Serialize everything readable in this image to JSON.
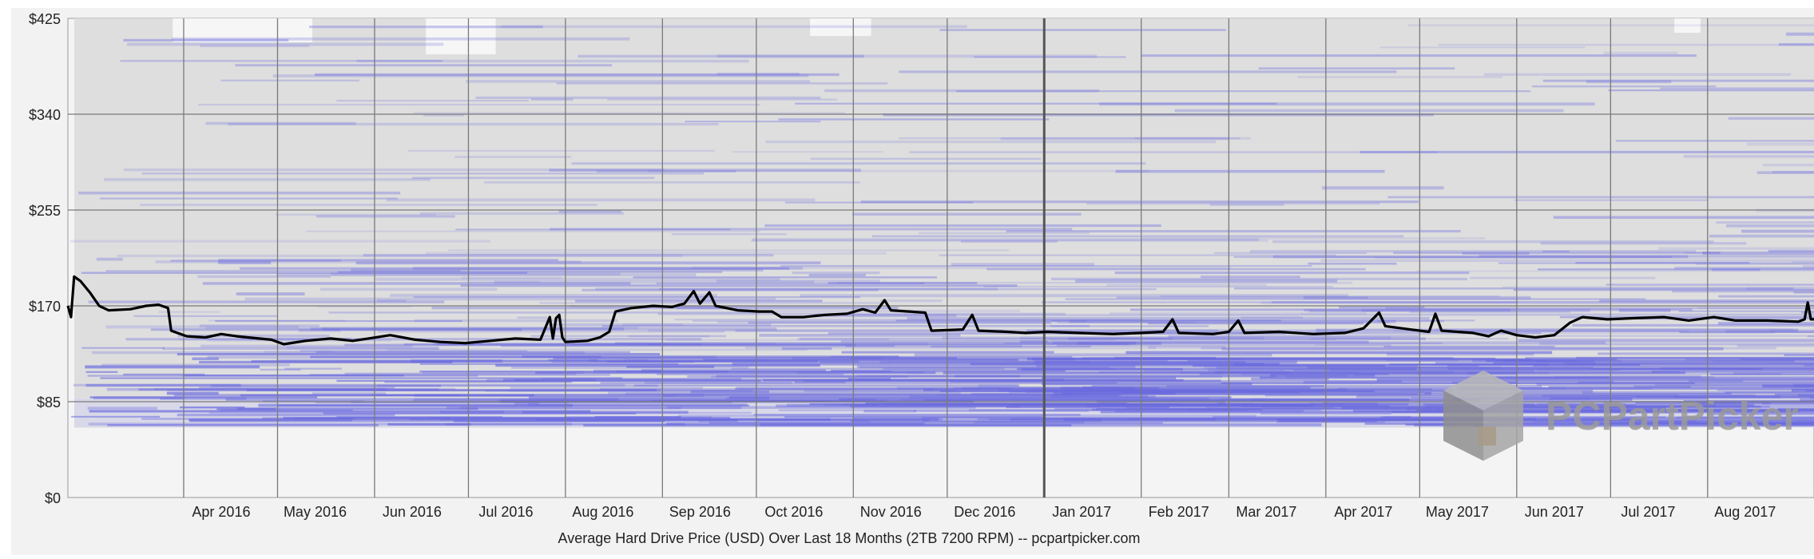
{
  "chart_data": {
    "type": "line",
    "title": "",
    "xlabel": "Average Hard Drive Price (USD) Over Last 18 Months (2TB 7200 RPM) -- pcpartpicker.com",
    "ylabel": "",
    "y_ticks": [
      "$425",
      "$340",
      "$255",
      "$170",
      "$85",
      "$0"
    ],
    "y_tick_values": [
      425,
      340,
      255,
      170,
      85,
      0
    ],
    "ylim": [
      0,
      425
    ],
    "x_labels": [
      "Apr 2016",
      "May 2016",
      "Jun 2016",
      "Jul 2016",
      "Aug 2016",
      "Sep 2016",
      "Oct 2016",
      "Nov 2016",
      "Dec 2016",
      "Jan 2017",
      "Feb 2017",
      "Mar 2017",
      "Apr 2017",
      "May 2017",
      "Jun 2017",
      "Jul 2017",
      "Aug 2017"
    ],
    "xlim": [
      "2016-02-24",
      "2017-09-04"
    ],
    "grid": true,
    "watermark": "PCPartPicker",
    "colors": {
      "average_line": "#000000",
      "price_range_bands": "#6a6adf",
      "background_area": "#dcdcdc",
      "grid": "#7a7a7a"
    },
    "series": [
      {
        "values": [
          [
            "2016-02-24",
            170
          ],
          [
            "2016-02-25",
            160
          ],
          [
            "2016-02-26",
            196
          ],
          [
            "2016-02-28",
            192
          ],
          [
            "2016-03-02",
            182
          ],
          [
            "2016-03-05",
            170
          ],
          [
            "2016-03-08",
            166
          ],
          [
            "2016-03-15",
            167
          ],
          [
            "2016-03-20",
            170
          ],
          [
            "2016-03-24",
            171
          ],
          [
            "2016-03-27",
            168
          ],
          [
            "2016-03-28",
            148
          ],
          [
            "2016-04-02",
            143
          ],
          [
            "2016-04-08",
            142
          ],
          [
            "2016-04-13",
            145
          ],
          [
            "2016-04-18",
            143
          ],
          [
            "2016-04-25",
            141
          ],
          [
            "2016-04-29",
            140
          ],
          [
            "2016-05-03",
            136
          ],
          [
            "2016-05-10",
            139
          ],
          [
            "2016-05-18",
            141
          ],
          [
            "2016-05-25",
            139
          ],
          [
            "2016-05-30",
            141
          ],
          [
            "2016-06-06",
            144
          ],
          [
            "2016-06-14",
            140
          ],
          [
            "2016-06-22",
            138
          ],
          [
            "2016-06-30",
            137
          ],
          [
            "2016-07-08",
            139
          ],
          [
            "2016-07-16",
            141
          ],
          [
            "2016-07-24",
            140
          ],
          [
            "2016-07-27",
            160
          ],
          [
            "2016-07-28",
            141
          ],
          [
            "2016-07-29",
            159
          ],
          [
            "2016-07-30",
            162
          ],
          [
            "2016-07-31",
            142
          ],
          [
            "2016-08-01",
            138
          ],
          [
            "2016-08-08",
            139
          ],
          [
            "2016-08-12",
            142
          ],
          [
            "2016-08-15",
            147
          ],
          [
            "2016-08-17",
            165
          ],
          [
            "2016-08-22",
            168
          ],
          [
            "2016-08-29",
            170
          ],
          [
            "2016-09-04",
            169
          ],
          [
            "2016-09-08",
            172
          ],
          [
            "2016-09-11",
            183
          ],
          [
            "2016-09-13",
            172
          ],
          [
            "2016-09-16",
            182
          ],
          [
            "2016-09-18",
            170
          ],
          [
            "2016-09-25",
            166
          ],
          [
            "2016-10-02",
            165
          ],
          [
            "2016-10-06",
            165
          ],
          [
            "2016-10-09",
            160
          ],
          [
            "2016-10-16",
            160
          ],
          [
            "2016-10-23",
            162
          ],
          [
            "2016-10-30",
            163
          ],
          [
            "2016-11-04",
            167
          ],
          [
            "2016-11-08",
            164
          ],
          [
            "2016-11-11",
            175
          ],
          [
            "2016-11-13",
            166
          ],
          [
            "2016-11-24",
            164
          ],
          [
            "2016-11-26",
            148
          ],
          [
            "2016-12-06",
            149
          ],
          [
            "2016-12-09",
            162
          ],
          [
            "2016-12-11",
            148
          ],
          [
            "2016-12-20",
            147
          ],
          [
            "2016-12-26",
            146
          ],
          [
            "2017-01-02",
            147
          ],
          [
            "2017-01-12",
            146
          ],
          [
            "2017-01-23",
            145
          ],
          [
            "2017-02-01",
            146
          ],
          [
            "2017-02-08",
            147
          ],
          [
            "2017-02-11",
            158
          ],
          [
            "2017-02-13",
            146
          ],
          [
            "2017-02-24",
            145
          ],
          [
            "2017-03-01",
            147
          ],
          [
            "2017-03-04",
            157
          ],
          [
            "2017-03-06",
            146
          ],
          [
            "2017-03-17",
            147
          ],
          [
            "2017-03-28",
            145
          ],
          [
            "2017-04-07",
            146
          ],
          [
            "2017-04-13",
            150
          ],
          [
            "2017-04-18",
            164
          ],
          [
            "2017-04-20",
            152
          ],
          [
            "2017-04-28",
            149
          ],
          [
            "2017-05-04",
            147
          ],
          [
            "2017-05-06",
            163
          ],
          [
            "2017-05-08",
            148
          ],
          [
            "2017-05-18",
            146
          ],
          [
            "2017-05-23",
            143
          ],
          [
            "2017-05-27",
            148
          ],
          [
            "2017-06-01",
            144
          ],
          [
            "2017-06-07",
            142
          ],
          [
            "2017-06-13",
            144
          ],
          [
            "2017-06-18",
            155
          ],
          [
            "2017-06-22",
            160
          ],
          [
            "2017-06-30",
            158
          ],
          [
            "2017-07-08",
            159
          ],
          [
            "2017-07-18",
            160
          ],
          [
            "2017-07-26",
            157
          ],
          [
            "2017-08-03",
            160
          ],
          [
            "2017-08-10",
            157
          ],
          [
            "2017-08-20",
            157
          ],
          [
            "2017-08-30",
            156
          ],
          [
            "2017-09-01",
            158
          ],
          [
            "2017-09-02",
            173
          ],
          [
            "2017-09-03",
            158
          ],
          [
            "2017-09-04",
            158
          ]
        ]
      }
    ]
  }
}
